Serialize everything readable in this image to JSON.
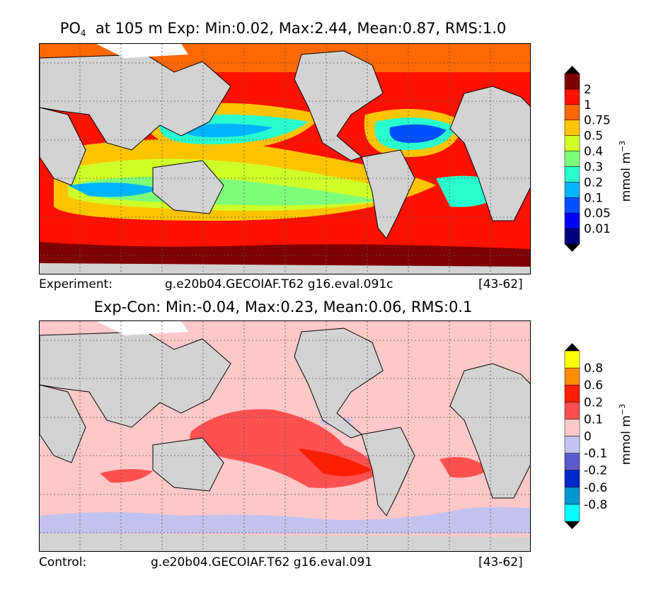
{
  "panels": {
    "experiment": {
      "title_prefix": "PO",
      "title_sub": "4",
      "title_rest": "at 105 m Exp: Min:0.02, Max:2.44, Mean:0.87, RMS:1.0",
      "footer_left": "Experiment:",
      "footer_case": "g.e20b04.GECOIAF.T62 g16.eval.091c",
      "footer_years": "[43-62]"
    },
    "difference": {
      "title": "Exp-Con: Min:-0.04, Max:0.23, Mean:0.06, RMS:0.1",
      "footer_left": "Control:",
      "footer_case": "g.e20b04.GECOIAF.T62 g16.eval.091",
      "footer_years": "[43-62]"
    }
  },
  "colors": {
    "land": "#d3d3d3",
    "ice": "#ffffff",
    "grid": "#555555"
  },
  "chart_data": [
    {
      "type": "heatmap",
      "title": "PO4 at 105 m Exp: Min:0.02, Max:2.44, Mean:0.87, RMS:1.0",
      "stats": {
        "min": 0.02,
        "max": 2.44,
        "mean": 0.87,
        "rms": 1.0
      },
      "colorbar": {
        "label": "mmol m",
        "label_sup": "−3",
        "levels": [
          "0.01",
          "0.05",
          "0.1",
          "0.2",
          "0.3",
          "0.4",
          "0.5",
          "0.75",
          "1",
          "2"
        ],
        "colors": [
          "#00007f",
          "#0000ff",
          "#0050ff",
          "#00b4ff",
          "#29ffce",
          "#7dff7a",
          "#ceff29",
          "#ffc400",
          "#ff6800",
          "#ff1100",
          "#7f0000"
        ]
      }
    },
    {
      "type": "heatmap",
      "title": "Exp-Con: Min:-0.04, Max:0.23, Mean:0.06, RMS:0.1",
      "stats": {
        "min": -0.04,
        "max": 0.23,
        "mean": 0.06,
        "rms": 0.1
      },
      "colorbar": {
        "label": "mmol m",
        "label_sup": "−3",
        "levels": [
          "-0.8",
          "-0.6",
          "-0.2",
          "-0.1",
          "0",
          "0.1",
          "0.2",
          "0.6",
          "0.8"
        ],
        "colors": [
          "#00ffff",
          "#0096d2",
          "#0028c8",
          "#5a5acd",
          "#c3c3ef",
          "#ffc8c8",
          "#ff5050",
          "#ff1e00",
          "#ff8c00",
          "#ffff00"
        ]
      }
    }
  ]
}
